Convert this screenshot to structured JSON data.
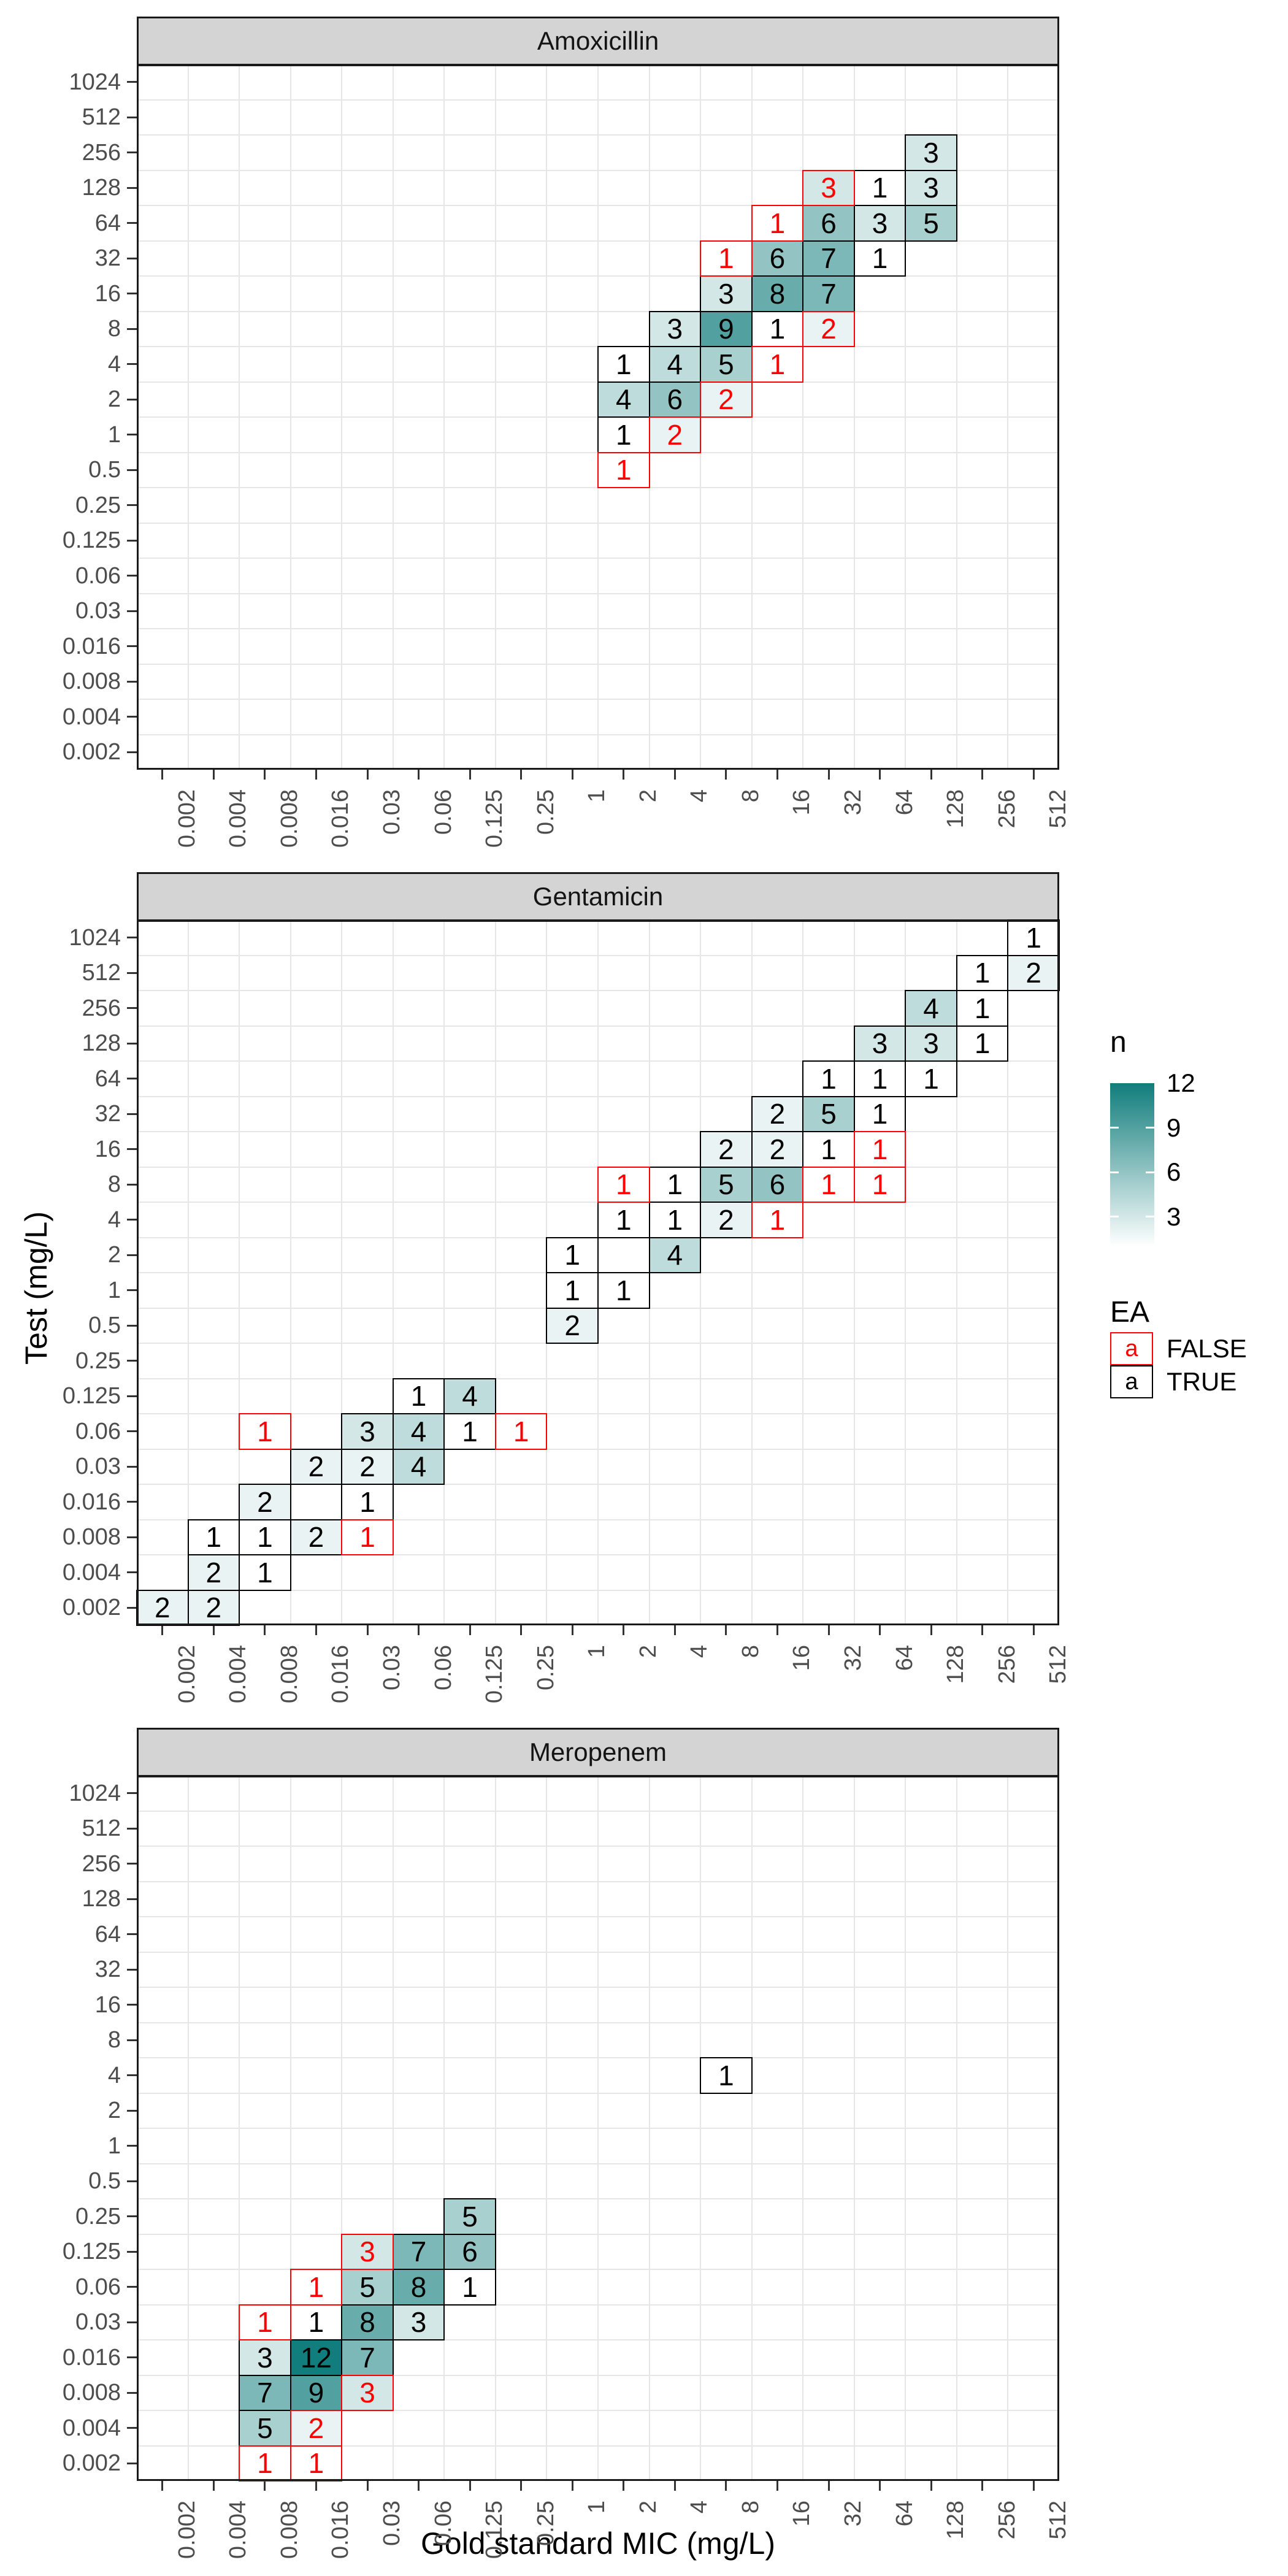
{
  "figure": {
    "background": "#FFFFFF"
  },
  "axes": {
    "x_title": "Gold standard MIC (mg/L)",
    "y_title": "Test (mg/L)",
    "x_ticks": [
      "0.002",
      "0.004",
      "0.008",
      "0.016",
      "0.03",
      "0.06",
      "0.125",
      "0.25",
      "1",
      "2",
      "4",
      "8",
      "16",
      "32",
      "64",
      "128",
      "256",
      "512"
    ],
    "y_ticks": [
      "1024",
      "512",
      "256",
      "128",
      "64",
      "32",
      "16",
      "8",
      "4",
      "2",
      "1",
      "0.5",
      "0.25",
      "0.125",
      "0.06",
      "0.03",
      "0.016",
      "0.008",
      "0.004",
      "0.002"
    ],
    "grid": "on"
  },
  "colors": {
    "gradient_low": "#FFFFFF",
    "gradient_high": "#117D7C",
    "ea_false": "#FF0000",
    "ea_true": "#000000",
    "strip_bg": "#D4D4D4",
    "panel_border": "#1A1A1A",
    "gridline": "#E6E6E6",
    "tick_label": "#4D4D4D"
  },
  "legend": {
    "n": {
      "title": "n",
      "ticks": [
        12,
        9,
        6,
        3
      ],
      "domain": [
        1,
        12
      ],
      "low": "#FFFFFF",
      "high": "#117D7C"
    },
    "ea": {
      "title": "EA",
      "key_glyph": "a",
      "items": [
        {
          "label": "FALSE",
          "color": "#FF0000"
        },
        {
          "label": "TRUE",
          "color": "#000000"
        }
      ]
    }
  },
  "chart_data": [
    {
      "type": "heatmap",
      "facet": "Amoxicillin",
      "xlabel": "Gold standard MIC (mg/L)",
      "ylabel": "Test (mg/L)",
      "tiles": [
        {
          "x": "128",
          "y": "256",
          "n": 3,
          "ea": true
        },
        {
          "x": "32",
          "y": "128",
          "n": 3,
          "ea": false
        },
        {
          "x": "64",
          "y": "128",
          "n": 1,
          "ea": true
        },
        {
          "x": "128",
          "y": "128",
          "n": 3,
          "ea": true
        },
        {
          "x": "16",
          "y": "64",
          "n": 1,
          "ea": false
        },
        {
          "x": "32",
          "y": "64",
          "n": 6,
          "ea": true
        },
        {
          "x": "64",
          "y": "64",
          "n": 3,
          "ea": true
        },
        {
          "x": "128",
          "y": "64",
          "n": 5,
          "ea": true
        },
        {
          "x": "8",
          "y": "32",
          "n": 1,
          "ea": false
        },
        {
          "x": "16",
          "y": "32",
          "n": 6,
          "ea": true
        },
        {
          "x": "32",
          "y": "32",
          "n": 7,
          "ea": true
        },
        {
          "x": "64",
          "y": "32",
          "n": 1,
          "ea": true
        },
        {
          "x": "8",
          "y": "16",
          "n": 3,
          "ea": true
        },
        {
          "x": "16",
          "y": "16",
          "n": 8,
          "ea": true
        },
        {
          "x": "32",
          "y": "16",
          "n": 7,
          "ea": true
        },
        {
          "x": "4",
          "y": "8",
          "n": 3,
          "ea": true
        },
        {
          "x": "8",
          "y": "8",
          "n": 9,
          "ea": true
        },
        {
          "x": "16",
          "y": "8",
          "n": 1,
          "ea": true
        },
        {
          "x": "32",
          "y": "8",
          "n": 2,
          "ea": false
        },
        {
          "x": "2",
          "y": "4",
          "n": 1,
          "ea": true
        },
        {
          "x": "4",
          "y": "4",
          "n": 4,
          "ea": true
        },
        {
          "x": "8",
          "y": "4",
          "n": 5,
          "ea": true
        },
        {
          "x": "16",
          "y": "4",
          "n": 1,
          "ea": false
        },
        {
          "x": "2",
          "y": "2",
          "n": 4,
          "ea": true
        },
        {
          "x": "4",
          "y": "2",
          "n": 6,
          "ea": true
        },
        {
          "x": "8",
          "y": "2",
          "n": 2,
          "ea": false
        },
        {
          "x": "2",
          "y": "1",
          "n": 1,
          "ea": true
        },
        {
          "x": "4",
          "y": "1",
          "n": 2,
          "ea": false
        },
        {
          "x": "2",
          "y": "0.5",
          "n": 1,
          "ea": false
        }
      ]
    },
    {
      "type": "heatmap",
      "facet": "Gentamicin",
      "xlabel": "Gold standard MIC (mg/L)",
      "ylabel": "Test (mg/L)",
      "tiles": [
        {
          "x": "512",
          "y": "1024",
          "n": 1,
          "ea": true
        },
        {
          "x": "256",
          "y": "512",
          "n": 1,
          "ea": true
        },
        {
          "x": "512",
          "y": "512",
          "n": 2,
          "ea": true
        },
        {
          "x": "128",
          "y": "256",
          "n": 4,
          "ea": true
        },
        {
          "x": "256",
          "y": "256",
          "n": 1,
          "ea": true
        },
        {
          "x": "64",
          "y": "128",
          "n": 3,
          "ea": true
        },
        {
          "x": "128",
          "y": "128",
          "n": 3,
          "ea": true
        },
        {
          "x": "256",
          "y": "128",
          "n": 1,
          "ea": true
        },
        {
          "x": "32",
          "y": "64",
          "n": 1,
          "ea": true
        },
        {
          "x": "64",
          "y": "64",
          "n": 1,
          "ea": true
        },
        {
          "x": "128",
          "y": "64",
          "n": 1,
          "ea": true
        },
        {
          "x": "16",
          "y": "32",
          "n": 2,
          "ea": true
        },
        {
          "x": "32",
          "y": "32",
          "n": 5,
          "ea": true
        },
        {
          "x": "64",
          "y": "32",
          "n": 1,
          "ea": true
        },
        {
          "x": "8",
          "y": "16",
          "n": 2,
          "ea": true
        },
        {
          "x": "16",
          "y": "16",
          "n": 2,
          "ea": true
        },
        {
          "x": "32",
          "y": "16",
          "n": 1,
          "ea": true
        },
        {
          "x": "64",
          "y": "16",
          "n": 1,
          "ea": false
        },
        {
          "x": "2",
          "y": "8",
          "n": 1,
          "ea": false
        },
        {
          "x": "4",
          "y": "8",
          "n": 1,
          "ea": true
        },
        {
          "x": "8",
          "y": "8",
          "n": 5,
          "ea": true
        },
        {
          "x": "16",
          "y": "8",
          "n": 6,
          "ea": true
        },
        {
          "x": "32",
          "y": "8",
          "n": 1,
          "ea": false
        },
        {
          "x": "64",
          "y": "8",
          "n": 1,
          "ea": false
        },
        {
          "x": "2",
          "y": "4",
          "n": 1,
          "ea": true
        },
        {
          "x": "4",
          "y": "4",
          "n": 1,
          "ea": true
        },
        {
          "x": "8",
          "y": "4",
          "n": 2,
          "ea": true
        },
        {
          "x": "16",
          "y": "4",
          "n": 1,
          "ea": false
        },
        {
          "x": "1",
          "y": "2",
          "n": 1,
          "ea": true
        },
        {
          "x": "4",
          "y": "2",
          "n": 4,
          "ea": true
        },
        {
          "x": "1",
          "y": "1",
          "n": 1,
          "ea": true
        },
        {
          "x": "2",
          "y": "1",
          "n": 1,
          "ea": true
        },
        {
          "x": "1",
          "y": "0.5",
          "n": 2,
          "ea": true
        },
        {
          "x": "0.06",
          "y": "0.125",
          "n": 1,
          "ea": true
        },
        {
          "x": "0.125",
          "y": "0.125",
          "n": 4,
          "ea": true
        },
        {
          "x": "0.008",
          "y": "0.06",
          "n": 1,
          "ea": false
        },
        {
          "x": "0.03",
          "y": "0.06",
          "n": 3,
          "ea": true
        },
        {
          "x": "0.06",
          "y": "0.06",
          "n": 4,
          "ea": true
        },
        {
          "x": "0.125",
          "y": "0.06",
          "n": 1,
          "ea": true
        },
        {
          "x": "0.25",
          "y": "0.06",
          "n": 1,
          "ea": false
        },
        {
          "x": "0.016",
          "y": "0.03",
          "n": 2,
          "ea": true
        },
        {
          "x": "0.03",
          "y": "0.03",
          "n": 2,
          "ea": true
        },
        {
          "x": "0.06",
          "y": "0.03",
          "n": 4,
          "ea": true
        },
        {
          "x": "0.008",
          "y": "0.016",
          "n": 2,
          "ea": true
        },
        {
          "x": "0.03",
          "y": "0.016",
          "n": 1,
          "ea": true
        },
        {
          "x": "0.004",
          "y": "0.008",
          "n": 1,
          "ea": true
        },
        {
          "x": "0.008",
          "y": "0.008",
          "n": 1,
          "ea": true
        },
        {
          "x": "0.016",
          "y": "0.008",
          "n": 2,
          "ea": true
        },
        {
          "x": "0.03",
          "y": "0.008",
          "n": 1,
          "ea": false
        },
        {
          "x": "0.004",
          "y": "0.004",
          "n": 2,
          "ea": true
        },
        {
          "x": "0.008",
          "y": "0.004",
          "n": 1,
          "ea": true
        },
        {
          "x": "0.002",
          "y": "0.002",
          "n": 2,
          "ea": true
        },
        {
          "x": "0.004",
          "y": "0.002",
          "n": 2,
          "ea": true
        }
      ]
    },
    {
      "type": "heatmap",
      "facet": "Meropenem",
      "xlabel": "Gold standard MIC (mg/L)",
      "ylabel": "Test (mg/L)",
      "tiles": [
        {
          "x": "8",
          "y": "4",
          "n": 1,
          "ea": true
        },
        {
          "x": "0.125",
          "y": "0.25",
          "n": 5,
          "ea": true
        },
        {
          "x": "0.03",
          "y": "0.125",
          "n": 3,
          "ea": false
        },
        {
          "x": "0.06",
          "y": "0.125",
          "n": 7,
          "ea": true
        },
        {
          "x": "0.125",
          "y": "0.125",
          "n": 6,
          "ea": true
        },
        {
          "x": "0.016",
          "y": "0.06",
          "n": 1,
          "ea": false
        },
        {
          "x": "0.03",
          "y": "0.06",
          "n": 5,
          "ea": true
        },
        {
          "x": "0.06",
          "y": "0.06",
          "n": 8,
          "ea": true
        },
        {
          "x": "0.125",
          "y": "0.06",
          "n": 1,
          "ea": true
        },
        {
          "x": "0.008",
          "y": "0.03",
          "n": 1,
          "ea": false
        },
        {
          "x": "0.016",
          "y": "0.03",
          "n": 1,
          "ea": true
        },
        {
          "x": "0.03",
          "y": "0.03",
          "n": 8,
          "ea": true
        },
        {
          "x": "0.06",
          "y": "0.03",
          "n": 3,
          "ea": true
        },
        {
          "x": "0.008",
          "y": "0.016",
          "n": 3,
          "ea": true
        },
        {
          "x": "0.016",
          "y": "0.016",
          "n": 12,
          "ea": true
        },
        {
          "x": "0.03",
          "y": "0.016",
          "n": 7,
          "ea": true
        },
        {
          "x": "0.008",
          "y": "0.008",
          "n": 7,
          "ea": true
        },
        {
          "x": "0.016",
          "y": "0.008",
          "n": 9,
          "ea": true
        },
        {
          "x": "0.03",
          "y": "0.008",
          "n": 3,
          "ea": false
        },
        {
          "x": "0.008",
          "y": "0.004",
          "n": 5,
          "ea": true
        },
        {
          "x": "0.016",
          "y": "0.004",
          "n": 2,
          "ea": false
        },
        {
          "x": "0.008",
          "y": "0.002",
          "n": 1,
          "ea": false
        },
        {
          "x": "0.016",
          "y": "0.002",
          "n": 1,
          "ea": false
        }
      ]
    }
  ]
}
